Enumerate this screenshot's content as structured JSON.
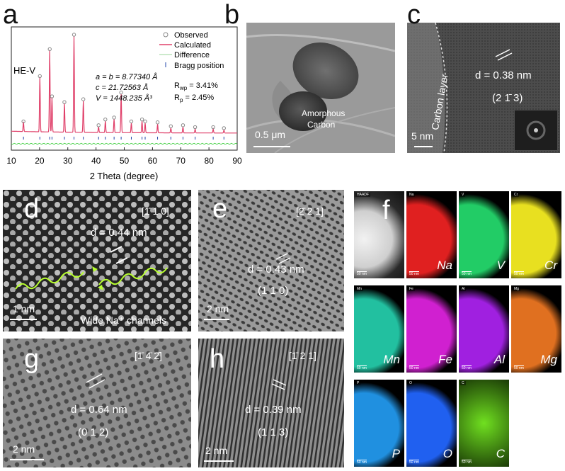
{
  "panels": {
    "a": {
      "letter": "a",
      "sample": "HE-V",
      "legend": [
        "Observed",
        "Calculated",
        "Difference",
        "Bragg position"
      ],
      "lattice": [
        "a = b = 8.77340 Å",
        "c = 21.72563 Å",
        "V = 1448.235 Å³"
      ],
      "fit": {
        "rwp": "3.41%",
        "rp": "2.45%"
      },
      "xlabel": "2 Theta (degree)",
      "colors": {
        "observed": "#888888",
        "calculated": "#e0406a",
        "difference": "#33cc33",
        "bragg": "#2244aa"
      }
    },
    "b": {
      "letter": "b",
      "annotation": [
        "Amorphous",
        "Carbon"
      ],
      "scale": "0.5 μm"
    },
    "c": {
      "letter": "c",
      "d_spacing": "d = 0.38 nm",
      "plane": "(2 1̄ 3)",
      "layer": "Carbon layer",
      "scale": "5 nm"
    },
    "d": {
      "letter": "d",
      "zone": "[1̄ 1 0]",
      "d_spacing": "d = 0.44 nm",
      "caption": "Wide Na⁺ channels",
      "scale": "1 nm"
    },
    "e": {
      "letter": "e",
      "zone": "[2̄ 2 1]",
      "d_spacing": "d = 0.43 nm",
      "plane": "(1 1 0)",
      "scale": "2 nm"
    },
    "f": {
      "letter": "f",
      "maps": [
        {
          "element": "",
          "tag": "HAADF",
          "color": "#d8d8d8"
        },
        {
          "element": "Na",
          "tag": "Na",
          "color": "#e02020"
        },
        {
          "element": "V",
          "tag": "V",
          "color": "#22cc66"
        },
        {
          "element": "Cr",
          "tag": "Cr",
          "color": "#e8e020"
        },
        {
          "element": "Mn",
          "tag": "Mn",
          "color": "#22c0a0"
        },
        {
          "element": "Fe",
          "tag": "Fe",
          "color": "#d020d0"
        },
        {
          "element": "Al",
          "tag": "Al",
          "color": "#a020e0"
        },
        {
          "element": "Mg",
          "tag": "Mg",
          "color": "#e07020"
        },
        {
          "element": "P",
          "tag": "P",
          "color": "#2090e0"
        },
        {
          "element": "O",
          "tag": "O",
          "color": "#2060f0"
        },
        {
          "element": "C",
          "tag": "C",
          "color": "#70e020"
        }
      ],
      "scale": "50 nm"
    },
    "g": {
      "letter": "g",
      "zone": "[1̄ 4̄ 2̄]",
      "d_spacing": "d = 0.64 nm",
      "plane": "(0 1 2)",
      "scale": "2 nm"
    },
    "h": {
      "letter": "h",
      "zone": "[1̄ 2 1]",
      "d_spacing": "d = 0.39 nm",
      "plane": "(1 1 3)",
      "scale": "2 nm"
    }
  },
  "chart_data": {
    "type": "line",
    "xlabel": "2 Theta (degree)",
    "ylabel": "",
    "xlim": [
      10,
      90
    ],
    "xticks": [
      10,
      20,
      30,
      40,
      50,
      60,
      70,
      80,
      90
    ],
    "peaks": [
      {
        "x": 14.3,
        "y": 0.1
      },
      {
        "x": 20.1,
        "y": 0.57
      },
      {
        "x": 23.6,
        "y": 0.85
      },
      {
        "x": 24.4,
        "y": 0.36
      },
      {
        "x": 28.8,
        "y": 0.3
      },
      {
        "x": 32.2,
        "y": 1.0
      },
      {
        "x": 35.5,
        "y": 0.33
      },
      {
        "x": 40.9,
        "y": 0.06
      },
      {
        "x": 43.3,
        "y": 0.12
      },
      {
        "x": 46.4,
        "y": 0.14
      },
      {
        "x": 48.9,
        "y": 0.4
      },
      {
        "x": 52.5,
        "y": 0.1
      },
      {
        "x": 56.3,
        "y": 0.12
      },
      {
        "x": 57.4,
        "y": 0.1
      },
      {
        "x": 61.8,
        "y": 0.09
      },
      {
        "x": 66.5,
        "y": 0.05
      },
      {
        "x": 70.8,
        "y": 0.06
      },
      {
        "x": 75.1,
        "y": 0.04
      },
      {
        "x": 81.5,
        "y": 0.04
      },
      {
        "x": 85.3,
        "y": 0.03
      }
    ]
  }
}
